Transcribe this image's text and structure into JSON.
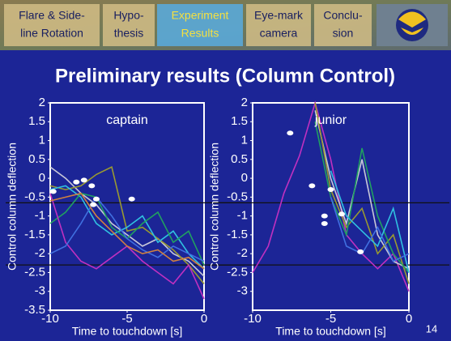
{
  "nav": {
    "tabs": [
      {
        "lines": [
          "Flare & Side-",
          "line Rotation"
        ],
        "active": false
      },
      {
        "lines": [
          "Hypo-",
          "thesis"
        ],
        "active": false
      },
      {
        "lines": [
          "Experiment",
          "Results"
        ],
        "active": true
      },
      {
        "lines": [
          "Eye-mark",
          "camera"
        ],
        "active": false
      },
      {
        "lines": [
          "Conclu-",
          "sion"
        ],
        "active": false
      }
    ]
  },
  "title": "Preliminary results (Column Control)",
  "page_number": "14",
  "chart_data": [
    {
      "type": "line",
      "title": "captain",
      "x_label": "Time  to touchdown [s]",
      "y_label": "Control column deflection",
      "x": [
        -10,
        -9,
        -8,
        -7,
        -6,
        -5,
        -4,
        -3,
        -2,
        -1,
        0
      ],
      "xlim": [
        -10,
        0
      ],
      "xticks": [
        -10,
        -5,
        0
      ],
      "ylim": [
        -3.5,
        2
      ],
      "yticks": [
        2,
        1.5,
        1,
        0.5,
        0,
        -0.5,
        -1,
        -1.5,
        -2,
        -2.5,
        -3,
        -3.5
      ],
      "hlines": [
        -0.65,
        -2.3
      ],
      "series": [
        {
          "color": "#c8c8d8",
          "values": [
            0.3,
            0.0,
            -0.4,
            -0.7,
            -1.2,
            -1.5,
            -1.8,
            -1.6,
            -2.0,
            -2.2,
            -2.6
          ]
        },
        {
          "color": "#9a9a30",
          "values": [
            -0.2,
            -0.3,
            -0.2,
            0.1,
            0.3,
            -1.4,
            -1.3,
            -1.6,
            -1.9,
            -2.3,
            -2.8
          ]
        },
        {
          "color": "#30c0e0",
          "values": [
            -0.3,
            -0.2,
            -0.5,
            -1.2,
            -1.5,
            -1.3,
            -1.0,
            -1.7,
            -1.4,
            -2.0,
            -2.4
          ]
        },
        {
          "color": "#20a060",
          "values": [
            -1.2,
            -0.9,
            -0.4,
            -0.5,
            -1.3,
            -1.6,
            -1.2,
            -0.9,
            -1.7,
            -1.4,
            -2.3
          ]
        },
        {
          "color": "#c030c0",
          "values": [
            -0.4,
            -1.7,
            -2.2,
            -2.4,
            -2.1,
            -1.8,
            -2.2,
            -2.5,
            -2.8,
            -2.3,
            -3.2
          ]
        },
        {
          "color": "#4070e0",
          "values": [
            -2.0,
            -1.8,
            -1.2,
            -0.5,
            -1.0,
            -1.6,
            -1.9,
            -2.1,
            -1.8,
            -2.0,
            -2.2
          ]
        },
        {
          "color": "#d08040",
          "values": [
            -0.6,
            -0.5,
            -0.4,
            -1.0,
            -1.4,
            -1.8,
            -2.0,
            -1.9,
            -2.2,
            -2.1,
            -2.4
          ]
        }
      ],
      "points": {
        "color": "#ffffff",
        "x": [
          -9.8,
          -8.3,
          -7.8,
          -7.3,
          -7.0,
          -7.2,
          -4.7
        ],
        "y": [
          -0.35,
          -0.1,
          -0.05,
          -0.2,
          -0.55,
          -0.7,
          -0.55
        ]
      }
    },
    {
      "type": "line",
      "title": "junior",
      "x_label": "Time  to touchdown [s]",
      "y_label": "Control column deflection",
      "x": [
        -10,
        -9,
        -8,
        -7,
        -6,
        -5,
        -4,
        -3,
        -2,
        -1,
        0
      ],
      "xlim": [
        -10,
        0
      ],
      "xticks": [
        -10,
        -5,
        0
      ],
      "ylim": [
        -3.5,
        2
      ],
      "yticks": [
        2,
        1.5,
        1,
        0.5,
        0,
        -0.5,
        -1,
        -1.5,
        -2,
        -2.5,
        -3
      ],
      "hlines": [
        -0.65,
        -2.3
      ],
      "series": [
        {
          "color": "#c030c0",
          "values": [
            -2.5,
            -1.8,
            -0.4,
            0.6,
            2.0,
            0.5,
            -1.5,
            -2.0,
            -2.4,
            -2.0,
            -3.0
          ]
        },
        {
          "color": "#c8c8d8",
          "values": [
            null,
            null,
            null,
            null,
            1.8,
            0.0,
            -1.2,
            0.5,
            -1.5,
            -2.2,
            -2.4
          ]
        },
        {
          "color": "#9a9a30",
          "values": [
            null,
            null,
            null,
            null,
            2.0,
            -0.3,
            -1.3,
            -0.8,
            -2.0,
            -1.5,
            -2.8
          ]
        },
        {
          "color": "#20a060",
          "values": [
            null,
            null,
            null,
            null,
            1.5,
            -0.5,
            -1.5,
            0.8,
            -1.0,
            -2.0,
            -2.5
          ]
        },
        {
          "color": "#30c0e0",
          "values": [
            null,
            null,
            null,
            null,
            null,
            0.2,
            -1.0,
            -1.4,
            -1.8,
            -0.8,
            -2.5
          ]
        },
        {
          "color": "#4070e0",
          "values": [
            null,
            null,
            null,
            null,
            null,
            -0.5,
            -1.8,
            -2.0,
            -1.3,
            -2.2,
            -2.0
          ]
        }
      ],
      "points": {
        "color": "#ffffff",
        "x": [
          -7.6,
          -6.2,
          -5.0,
          -5.4,
          -5.4,
          -4.3,
          -3.1
        ],
        "y": [
          1.2,
          -0.2,
          -0.3,
          -1.0,
          -1.2,
          -0.95,
          -1.95
        ]
      }
    }
  ]
}
